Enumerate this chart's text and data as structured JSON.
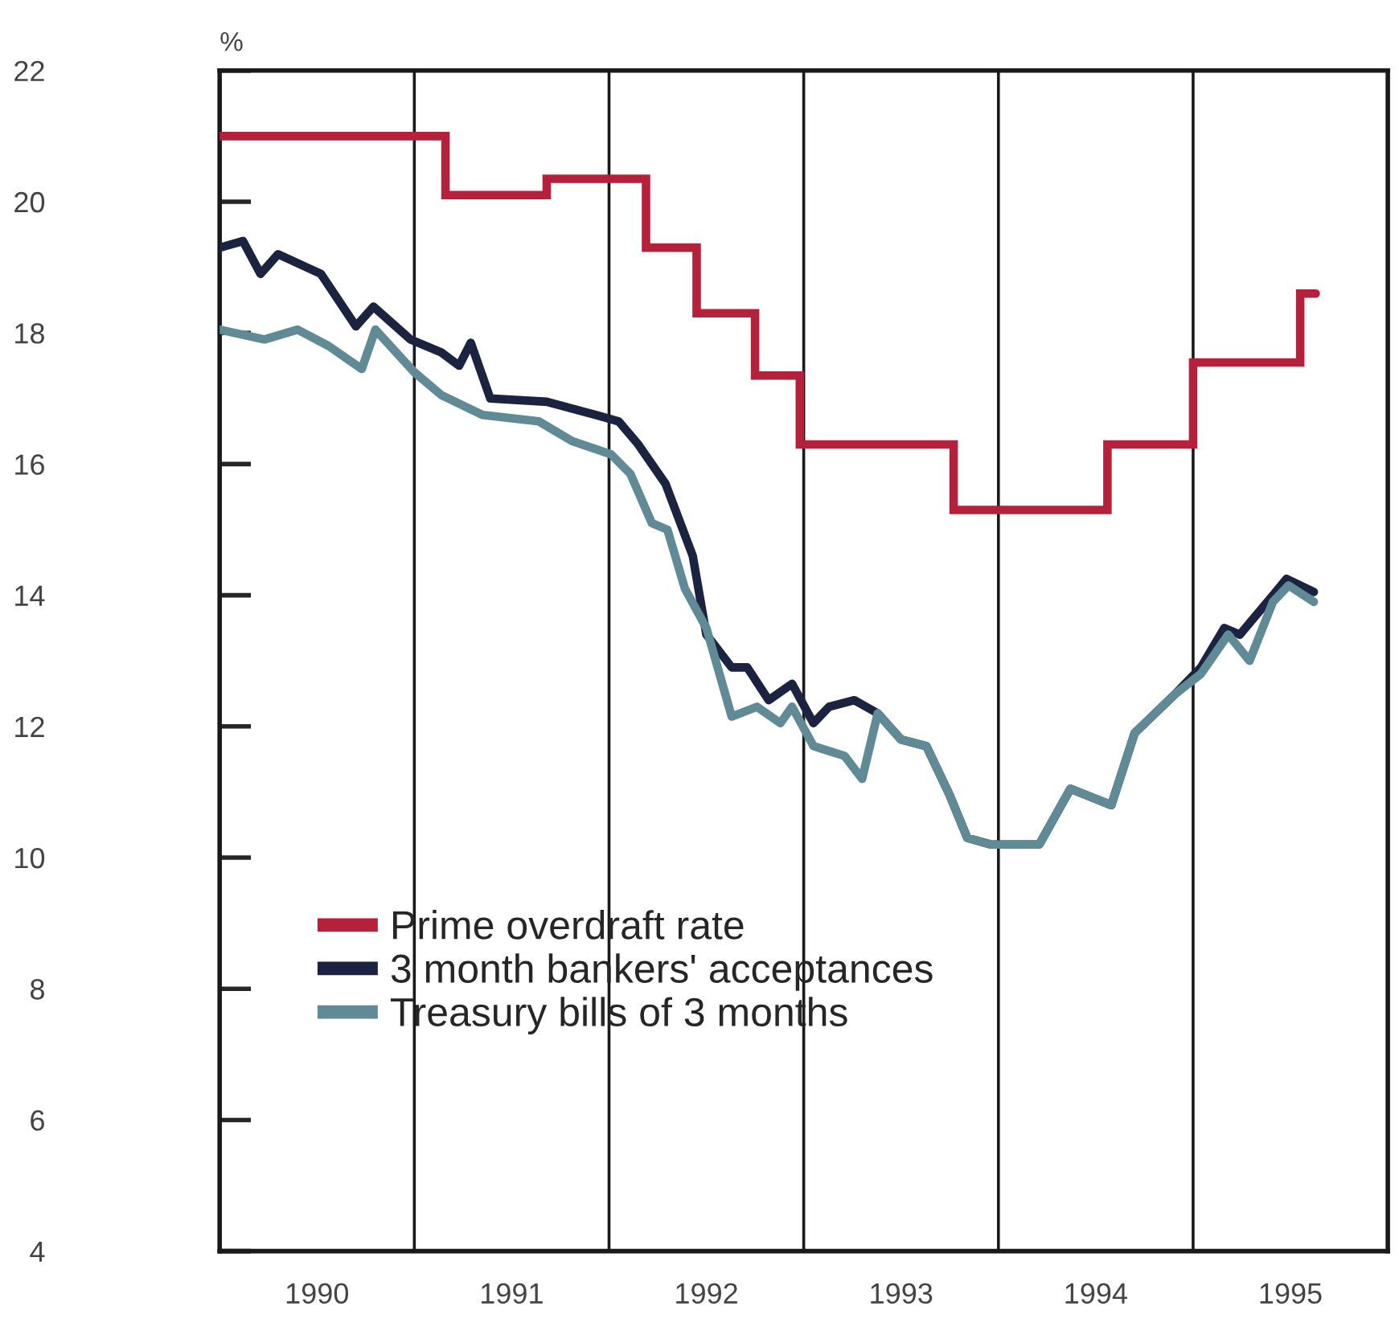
{
  "chart_data": {
    "type": "line",
    "ylabel": "%",
    "xlim": [
      1990,
      1996
    ],
    "xticks": [
      {
        "value": 1990.5,
        "label": "1990"
      },
      {
        "value": 1991.5,
        "label": "1991"
      },
      {
        "value": 1992.5,
        "label": "1992"
      },
      {
        "value": 1993.5,
        "label": "1993"
      },
      {
        "value": 1994.5,
        "label": "1994"
      },
      {
        "value": 1995.5,
        "label": "1995"
      }
    ],
    "ylim": [
      4,
      22
    ],
    "yticks": [
      4,
      6,
      8,
      10,
      12,
      14,
      16,
      18,
      20,
      22
    ],
    "ref_lines": [
      {
        "axis": "x",
        "value": 1991,
        "color": "#1a1a1a"
      },
      {
        "axis": "x",
        "value": 1992,
        "color": "#1a1a1a"
      },
      {
        "axis": "x",
        "value": 1993,
        "color": "#1a1a1a"
      },
      {
        "axis": "x",
        "value": 1994,
        "color": "#1a1a1a"
      },
      {
        "axis": "x",
        "value": 1995,
        "color": "#1a1a1a"
      }
    ],
    "grid": false,
    "legend": "bottom left",
    "series": [
      {
        "name": "Prime overdraft rate",
        "type": "step",
        "color": "#b5213a",
        "x": [
          1990.0,
          1991.16,
          1991.68,
          1992.19,
          1992.45,
          1992.75,
          1992.98,
          1993.77,
          1994.56,
          1995.0,
          1995.55,
          1995.63
        ],
        "values": [
          21.0,
          20.1,
          20.35,
          19.3,
          18.3,
          17.35,
          16.3,
          15.3,
          16.3,
          17.55,
          18.6,
          18.6
        ]
      },
      {
        "name": "3 month bankers' acceptances",
        "color": "#1c2340",
        "x": [
          1990.0,
          1990.12,
          1990.21,
          1990.3,
          1990.52,
          1990.7,
          1990.79,
          1990.98,
          1991.14,
          1991.23,
          1991.29,
          1991.39,
          1991.68,
          1991.93,
          1992.05,
          1992.15,
          1992.29,
          1992.43,
          1992.5,
          1992.63,
          1992.71,
          1992.82,
          1992.94,
          1993.05,
          1993.13,
          1993.26,
          1993.38,
          1993.5,
          1993.63,
          1993.75,
          1993.84,
          1993.96,
          1994.21,
          1994.37,
          1994.58,
          1994.7,
          1994.91,
          1995.04,
          1995.16,
          1995.24,
          1995.41,
          1995.48,
          1995.62
        ],
        "values": [
          19.3,
          19.4,
          18.9,
          19.2,
          18.9,
          18.1,
          18.4,
          17.9,
          17.7,
          17.5,
          17.85,
          17.0,
          16.95,
          16.75,
          16.65,
          16.3,
          15.7,
          14.6,
          13.4,
          12.9,
          12.9,
          12.4,
          12.65,
          12.05,
          12.3,
          12.4,
          12.2,
          11.8,
          11.7,
          10.95,
          10.3,
          10.2,
          10.2,
          11.05,
          10.8,
          11.9,
          12.5,
          12.9,
          13.5,
          13.4,
          14.0,
          14.25,
          14.05
        ]
      },
      {
        "name": "Treasury bills of 3 months",
        "color": "#5f8a96",
        "x": [
          1990.0,
          1990.23,
          1990.4,
          1990.56,
          1990.73,
          1990.8,
          1991.0,
          1991.14,
          1991.35,
          1991.64,
          1991.81,
          1992.01,
          1992.11,
          1992.22,
          1992.3,
          1992.39,
          1992.5,
          1992.63,
          1992.76,
          1992.88,
          1992.94,
          1993.05,
          1993.21,
          1993.3,
          1993.38,
          1993.5,
          1993.63,
          1993.75,
          1993.84,
          1993.96,
          1994.21,
          1994.37,
          1994.58,
          1994.7,
          1994.91,
          1995.04,
          1995.18,
          1995.29,
          1995.41,
          1995.49,
          1995.62
        ],
        "values": [
          18.05,
          17.9,
          18.05,
          17.8,
          17.45,
          18.05,
          17.4,
          17.05,
          16.75,
          16.65,
          16.35,
          16.15,
          15.85,
          15.1,
          15.0,
          14.1,
          13.5,
          12.15,
          12.3,
          12.05,
          12.3,
          11.7,
          11.55,
          11.2,
          12.2,
          11.8,
          11.7,
          10.95,
          10.3,
          10.2,
          10.2,
          11.05,
          10.8,
          11.9,
          12.5,
          12.8,
          13.4,
          13.0,
          13.9,
          14.15,
          13.9
        ]
      }
    ]
  }
}
